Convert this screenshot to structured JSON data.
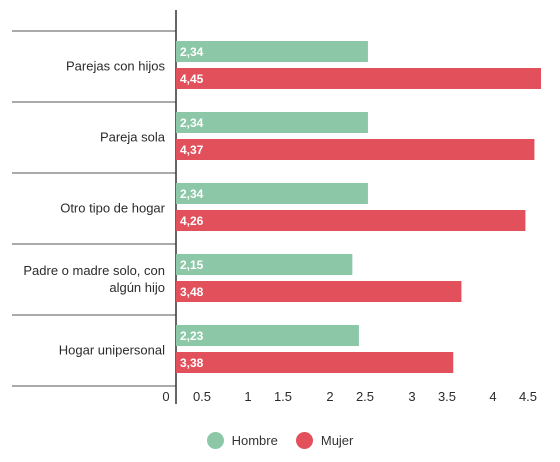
{
  "chart_data": {
    "type": "bar",
    "orientation": "horizontal",
    "categories": [
      "Parejas con hijos",
      "Pareja sola",
      "Otro tipo de hogar",
      "Padre o madre solo, con algún hijo",
      "Hogar unipersonal"
    ],
    "category_lines": [
      [
        "Parejas con hijos"
      ],
      [
        "Pareja sola"
      ],
      [
        "Otro tipo de hogar"
      ],
      [
        "Padre o madre solo, con",
        "algún hijo"
      ],
      [
        "Hogar unipersonal"
      ]
    ],
    "series": [
      {
        "name": "Hombre",
        "color": "#8cc7a7",
        "values": [
          2.34,
          2.34,
          2.34,
          2.15,
          2.23
        ],
        "labels": [
          "2,34",
          "2,34",
          "2,34",
          "2,15",
          "2,23"
        ]
      },
      {
        "name": "Mujer",
        "color": "#e2505c",
        "values": [
          4.45,
          4.37,
          4.26,
          3.48,
          3.38
        ],
        "labels": [
          "4,45",
          "4,37",
          "4,26",
          "3,48",
          "3,38"
        ]
      }
    ],
    "xlim": [
      0,
      4.5
    ],
    "x_ticks": [
      0,
      0.5,
      1,
      1.5,
      2,
      2.5,
      3,
      3.5,
      4,
      4.5
    ],
    "x_tick_labels": [
      "0",
      "0.5",
      "1",
      "1.5",
      "2",
      "2.5",
      "3",
      "3.5",
      "4",
      "4.5"
    ],
    "legend_position": "bottom",
    "grid": false
  }
}
